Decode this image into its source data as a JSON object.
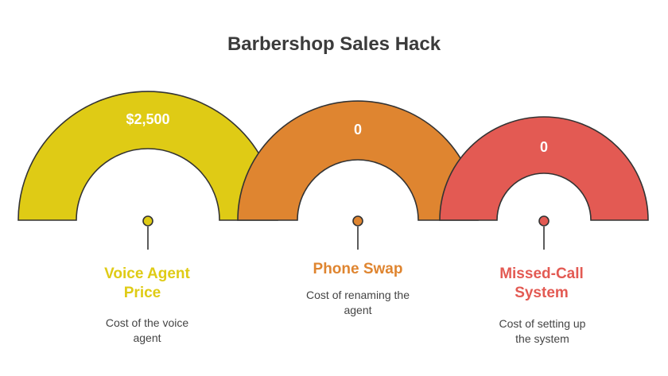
{
  "title": "Barbershop Sales Hack",
  "colors": {
    "yellow": "#DFCB15",
    "orange": "#DF8530",
    "red": "#E35A53",
    "outline": "#333333",
    "text": "#3b3b3b"
  },
  "items": [
    {
      "value": "$2,500",
      "label_line1": "Voice Agent",
      "label_line2": "Price",
      "desc_line1": "Cost of the voice",
      "desc_line2": "agent"
    },
    {
      "value": "0",
      "label_line1": "Phone Swap",
      "label_line2": "",
      "desc_line1": "Cost of renaming the",
      "desc_line2": "agent"
    },
    {
      "value": "0",
      "label_line1": "Missed-Call",
      "label_line2": "System",
      "desc_line1": "Cost of setting up",
      "desc_line2": "the system"
    }
  ]
}
